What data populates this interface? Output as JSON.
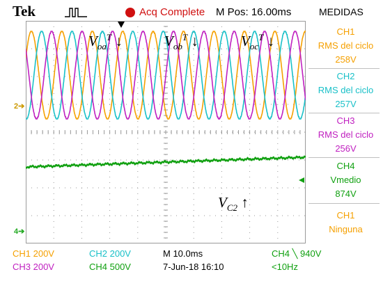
{
  "header": {
    "brand": "Tek",
    "acq_status": "Acq Complete",
    "m_pos": "M Pos: 16.00ms",
    "menu_title": "MEDIDAS"
  },
  "waveform_labels": {
    "voa": {
      "base": "V",
      "sub": "oa",
      "sup": "T",
      "arrow": "↓"
    },
    "vob": {
      "base": "V",
      "sub": "ob",
      "sup": "T",
      "arrow": "↓"
    },
    "voc": {
      "base": "V",
      "sub": "oc",
      "sup": "T",
      "arrow": "↓"
    },
    "vc2": {
      "base": "V",
      "sub": "C2",
      "arrow": "↑"
    }
  },
  "measurements": [
    {
      "ch": "CH1",
      "name": "RMS del ciclo",
      "value": "258V",
      "color": "#f5a000"
    },
    {
      "ch": "CH2",
      "name": "RMS del ciclo",
      "value": "257V",
      "color": "#19c0c8"
    },
    {
      "ch": "CH3",
      "name": "RMS del ciclo",
      "value": "256V",
      "color": "#c020c0"
    },
    {
      "ch": "CH4",
      "name": "Vmedio",
      "value": "874V",
      "color": "#10a010"
    },
    {
      "ch": "CH1",
      "name": "Ninguna",
      "value": "",
      "color": "#f5a000"
    }
  ],
  "markers": {
    "ch2": "2",
    "ch4": "4"
  },
  "footer": {
    "ch1_scale": "CH1  200V",
    "ch2_scale": "CH2  200V",
    "ch3_scale": "CH3  200V",
    "ch4_scale": "CH4  500V",
    "timebase": "M 10.0ms",
    "date": "7-Jun-18 16:10",
    "trigger": "CH4 ╲ 940V",
    "freq": "<10Hz"
  },
  "colors": {
    "ch1": "#f5a000",
    "ch2": "#19c0c8",
    "ch3": "#c020c0",
    "ch4": "#10a010",
    "grid": "#9a9a9a"
  },
  "signals": {
    "sine_cycles_on_screen": 9.2,
    "phases_deg": {
      "ch1": 0,
      "ch2": -120,
      "ch3": 120
    },
    "ch4_dc_start_div": 1.25,
    "ch4_dc_end_div": 0.9
  }
}
